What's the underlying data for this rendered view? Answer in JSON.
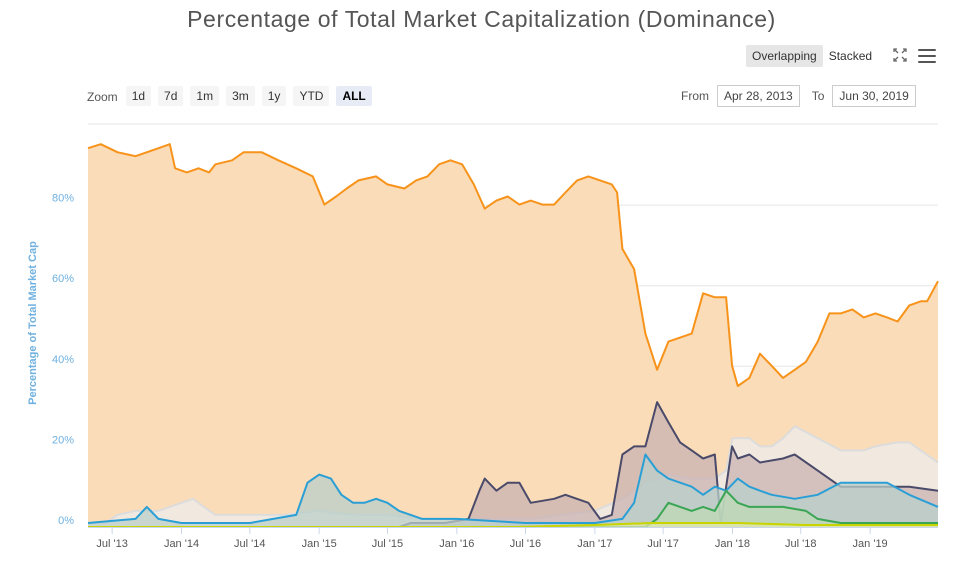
{
  "title": "Percentage of Total Market Capitalization (Dominance)",
  "modes": [
    {
      "label": "Overlapping",
      "active": true
    },
    {
      "label": "Stacked",
      "active": false
    }
  ],
  "zoom": {
    "label": "Zoom",
    "options": [
      "1d",
      "7d",
      "1m",
      "3m",
      "1y",
      "YTD",
      "ALL"
    ],
    "selected": "ALL"
  },
  "range": {
    "from_label": "From",
    "from_value": "Apr 28, 2013",
    "to_label": "To",
    "to_value": "Jun 30, 2019"
  },
  "chart_data": {
    "type": "area",
    "title": "Percentage of Total Market Capitalization (Dominance)",
    "ylabel": "Percentage of Total Market Cap",
    "ylim": [
      0,
      100
    ],
    "xlim": [
      "2013-04-28",
      "2019-06-30"
    ],
    "grid": true,
    "y_ticks": [
      {
        "value": 0,
        "label": "0%"
      },
      {
        "value": 20,
        "label": "20%"
      },
      {
        "value": 40,
        "label": "40%"
      },
      {
        "value": 60,
        "label": "60%"
      },
      {
        "value": 80,
        "label": "80%"
      }
    ],
    "x_ticks": [
      {
        "date": "2013-07-01",
        "label": "Jul '13"
      },
      {
        "date": "2014-01-01",
        "label": "Jan '14"
      },
      {
        "date": "2014-07-01",
        "label": "Jul '14"
      },
      {
        "date": "2015-01-01",
        "label": "Jan '15"
      },
      {
        "date": "2015-07-01",
        "label": "Jul '15"
      },
      {
        "date": "2016-01-01",
        "label": "Jan '16"
      },
      {
        "date": "2016-07-01",
        "label": "Jul '16"
      },
      {
        "date": "2017-01-01",
        "label": "Jan '17"
      },
      {
        "date": "2017-07-01",
        "label": "Jul '17"
      },
      {
        "date": "2018-01-01",
        "label": "Jan '18"
      },
      {
        "date": "2018-07-01",
        "label": "Jul '18"
      },
      {
        "date": "2019-01-01",
        "label": "Jan '19"
      }
    ],
    "series": [
      {
        "line_color": "#f7931a",
        "fill_color": "#fbdcb8",
        "points": [
          [
            "2013-04-28",
            94
          ],
          [
            "2013-06-01",
            95
          ],
          [
            "2013-07-15",
            93
          ],
          [
            "2013-09-01",
            92
          ],
          [
            "2013-11-01",
            94
          ],
          [
            "2013-12-01",
            95
          ],
          [
            "2013-12-15",
            89
          ],
          [
            "2014-01-15",
            88
          ],
          [
            "2014-02-15",
            89
          ],
          [
            "2014-03-15",
            88
          ],
          [
            "2014-04-01",
            90
          ],
          [
            "2014-05-15",
            91
          ],
          [
            "2014-06-15",
            93
          ],
          [
            "2014-08-01",
            93
          ],
          [
            "2014-09-15",
            91
          ],
          [
            "2014-11-01",
            89
          ],
          [
            "2014-12-15",
            87
          ],
          [
            "2015-01-15",
            80
          ],
          [
            "2015-02-15",
            82
          ],
          [
            "2015-03-15",
            84
          ],
          [
            "2015-04-15",
            86
          ],
          [
            "2015-06-01",
            87
          ],
          [
            "2015-07-01",
            85
          ],
          [
            "2015-08-15",
            84
          ],
          [
            "2015-09-15",
            86
          ],
          [
            "2015-10-15",
            87
          ],
          [
            "2015-11-15",
            90
          ],
          [
            "2015-12-15",
            91
          ],
          [
            "2016-01-15",
            90
          ],
          [
            "2016-02-15",
            85
          ],
          [
            "2016-03-15",
            79
          ],
          [
            "2016-04-15",
            81
          ],
          [
            "2016-05-15",
            82
          ],
          [
            "2016-06-15",
            80
          ],
          [
            "2016-07-15",
            81
          ],
          [
            "2016-08-15",
            80
          ],
          [
            "2016-09-15",
            80
          ],
          [
            "2016-10-15",
            83
          ],
          [
            "2016-11-15",
            86
          ],
          [
            "2016-12-15",
            87
          ],
          [
            "2017-01-15",
            86
          ],
          [
            "2017-02-15",
            85
          ],
          [
            "2017-03-01",
            83
          ],
          [
            "2017-03-15",
            69
          ],
          [
            "2017-04-15",
            64
          ],
          [
            "2017-05-15",
            48
          ],
          [
            "2017-06-15",
            39
          ],
          [
            "2017-07-15",
            46
          ],
          [
            "2017-08-15",
            47
          ],
          [
            "2017-09-15",
            48
          ],
          [
            "2017-10-15",
            58
          ],
          [
            "2017-11-15",
            57
          ],
          [
            "2017-12-15",
            57
          ],
          [
            "2017-12-31",
            40
          ],
          [
            "2018-01-15",
            35
          ],
          [
            "2018-02-15",
            37
          ],
          [
            "2018-03-15",
            43
          ],
          [
            "2018-04-15",
            40
          ],
          [
            "2018-05-15",
            37
          ],
          [
            "2018-06-15",
            39
          ],
          [
            "2018-07-15",
            41
          ],
          [
            "2018-08-15",
            46
          ],
          [
            "2018-09-15",
            53
          ],
          [
            "2018-10-15",
            53
          ],
          [
            "2018-11-15",
            54
          ],
          [
            "2018-12-15",
            52
          ],
          [
            "2019-01-15",
            53
          ],
          [
            "2019-02-15",
            52
          ],
          [
            "2019-03-15",
            51
          ],
          [
            "2019-04-15",
            55
          ],
          [
            "2019-05-15",
            56
          ],
          [
            "2019-06-01",
            56
          ],
          [
            "2019-06-30",
            61
          ]
        ]
      },
      {
        "line_color": "#dcdcdc",
        "fill_color": "#eeeeee",
        "points": [
          [
            "2013-04-28",
            1
          ],
          [
            "2013-06-15",
            1
          ],
          [
            "2013-07-15",
            3
          ],
          [
            "2013-09-01",
            4
          ],
          [
            "2013-11-01",
            4
          ],
          [
            "2014-01-01",
            6
          ],
          [
            "2014-02-01",
            7
          ],
          [
            "2014-03-01",
            5
          ],
          [
            "2014-04-01",
            3
          ],
          [
            "2014-07-01",
            3
          ],
          [
            "2014-10-01",
            3
          ],
          [
            "2015-01-01",
            4
          ],
          [
            "2015-04-01",
            3
          ],
          [
            "2015-07-01",
            3
          ],
          [
            "2015-10-01",
            2
          ],
          [
            "2016-01-01",
            2
          ],
          [
            "2016-03-15",
            2
          ],
          [
            "2016-06-01",
            2
          ],
          [
            "2016-07-15",
            2
          ],
          [
            "2016-10-01",
            3
          ],
          [
            "2017-01-01",
            4
          ],
          [
            "2017-03-15",
            7
          ],
          [
            "2017-05-15",
            11
          ],
          [
            "2017-07-15",
            13
          ],
          [
            "2017-09-15",
            12
          ],
          [
            "2017-11-15",
            12
          ],
          [
            "2017-12-15",
            14
          ],
          [
            "2018-01-01",
            22
          ],
          [
            "2018-02-15",
            22
          ],
          [
            "2018-03-15",
            20
          ],
          [
            "2018-04-15",
            20
          ],
          [
            "2018-05-15",
            22
          ],
          [
            "2018-06-15",
            25
          ],
          [
            "2018-08-15",
            22
          ],
          [
            "2018-10-15",
            19
          ],
          [
            "2018-12-15",
            19
          ],
          [
            "2019-01-15",
            20
          ],
          [
            "2019-03-15",
            21
          ],
          [
            "2019-04-15",
            21
          ],
          [
            "2019-05-15",
            19
          ],
          [
            "2019-06-30",
            16
          ]
        ]
      },
      {
        "line_color": "#4a4a6a",
        "fill_color": "#c9b3b3",
        "points": [
          [
            "2013-04-28",
            0
          ],
          [
            "2015-08-01",
            0
          ],
          [
            "2015-09-01",
            1
          ],
          [
            "2015-12-01",
            1
          ],
          [
            "2016-02-01",
            2
          ],
          [
            "2016-03-01",
            9
          ],
          [
            "2016-03-15",
            12
          ],
          [
            "2016-04-15",
            9
          ],
          [
            "2016-05-15",
            11
          ],
          [
            "2016-06-15",
            11
          ],
          [
            "2016-07-15",
            6
          ],
          [
            "2016-09-15",
            7
          ],
          [
            "2016-10-15",
            8
          ],
          [
            "2016-12-15",
            6
          ],
          [
            "2017-01-15",
            2
          ],
          [
            "2017-02-15",
            3
          ],
          [
            "2017-03-15",
            18
          ],
          [
            "2017-04-15",
            20
          ],
          [
            "2017-05-15",
            20
          ],
          [
            "2017-06-15",
            31
          ],
          [
            "2017-07-15",
            26
          ],
          [
            "2017-08-15",
            21
          ],
          [
            "2017-09-15",
            19
          ],
          [
            "2017-10-15",
            17
          ],
          [
            "2017-11-15",
            18
          ],
          [
            "2017-12-01",
            1
          ],
          [
            "2017-12-31",
            20
          ],
          [
            "2018-01-15",
            17
          ],
          [
            "2018-02-15",
            18
          ],
          [
            "2018-03-15",
            16
          ],
          [
            "2018-05-15",
            17
          ],
          [
            "2018-06-15",
            18
          ],
          [
            "2018-08-15",
            14
          ],
          [
            "2018-10-15",
            10
          ],
          [
            "2018-12-15",
            10
          ],
          [
            "2019-02-15",
            10
          ],
          [
            "2019-04-15",
            10
          ],
          [
            "2019-06-30",
            9
          ]
        ]
      },
      {
        "line_color": "#2a9fd6",
        "fill_color": "#b9cfc9",
        "points": [
          [
            "2013-04-28",
            1
          ],
          [
            "2013-09-01",
            2
          ],
          [
            "2013-10-01",
            5
          ],
          [
            "2013-11-01",
            2
          ],
          [
            "2014-01-01",
            1
          ],
          [
            "2014-04-01",
            1
          ],
          [
            "2014-07-01",
            1
          ],
          [
            "2014-09-01",
            2
          ],
          [
            "2014-11-01",
            3
          ],
          [
            "2014-12-01",
            11
          ],
          [
            "2015-01-01",
            13
          ],
          [
            "2015-02-01",
            12
          ],
          [
            "2015-03-01",
            8
          ],
          [
            "2015-04-01",
            6
          ],
          [
            "2015-05-01",
            6
          ],
          [
            "2015-06-01",
            7
          ],
          [
            "2015-07-01",
            6
          ],
          [
            "2015-08-01",
            4
          ],
          [
            "2015-09-01",
            3
          ],
          [
            "2015-10-01",
            2
          ],
          [
            "2016-01-01",
            2
          ],
          [
            "2016-07-01",
            1
          ],
          [
            "2017-01-01",
            1
          ],
          [
            "2017-03-15",
            2
          ],
          [
            "2017-04-15",
            6
          ],
          [
            "2017-05-15",
            18
          ],
          [
            "2017-06-15",
            14
          ],
          [
            "2017-07-15",
            12
          ],
          [
            "2017-09-15",
            10
          ],
          [
            "2017-10-15",
            8
          ],
          [
            "2017-11-15",
            10
          ],
          [
            "2017-12-15",
            9
          ],
          [
            "2018-01-15",
            12
          ],
          [
            "2018-02-15",
            10
          ],
          [
            "2018-03-15",
            9
          ],
          [
            "2018-04-15",
            8
          ],
          [
            "2018-06-15",
            7
          ],
          [
            "2018-08-15",
            8
          ],
          [
            "2018-10-15",
            11
          ],
          [
            "2018-12-15",
            11
          ],
          [
            "2019-02-15",
            11
          ],
          [
            "2019-04-15",
            8
          ],
          [
            "2019-06-30",
            5
          ]
        ]
      },
      {
        "line_color": "#3aa655",
        "fill_color": "#bfd9b5",
        "points": [
          [
            "2013-04-28",
            0
          ],
          [
            "2017-05-15",
            0
          ],
          [
            "2017-06-15",
            2
          ],
          [
            "2017-07-15",
            6
          ],
          [
            "2017-08-15",
            5
          ],
          [
            "2017-09-15",
            4
          ],
          [
            "2017-10-15",
            5
          ],
          [
            "2017-11-15",
            4
          ],
          [
            "2017-12-15",
            9
          ],
          [
            "2018-01-15",
            6
          ],
          [
            "2018-02-15",
            5
          ],
          [
            "2018-03-15",
            5
          ],
          [
            "2018-05-15",
            5
          ],
          [
            "2018-07-15",
            4
          ],
          [
            "2018-08-15",
            2
          ],
          [
            "2018-10-15",
            1
          ],
          [
            "2019-01-15",
            1
          ],
          [
            "2019-06-30",
            1
          ]
        ]
      },
      {
        "line_color": "#c8d400",
        "fill_color": "#e2e8a8",
        "points": [
          [
            "2013-04-28",
            0
          ],
          [
            "2016-06-01",
            0
          ],
          [
            "2017-01-01",
            0.5
          ],
          [
            "2017-06-01",
            1
          ],
          [
            "2018-01-15",
            1
          ],
          [
            "2018-07-15",
            0.5
          ],
          [
            "2019-01-15",
            0.5
          ],
          [
            "2019-06-30",
            0.5
          ]
        ]
      }
    ]
  }
}
